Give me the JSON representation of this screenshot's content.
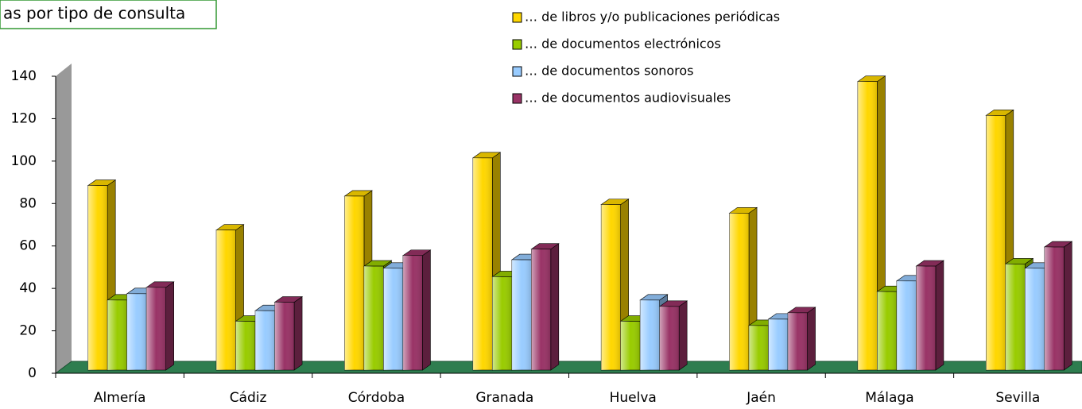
{
  "chart_data": {
    "type": "bar3d",
    "title": "as por tipo de consulta",
    "categories": [
      "Almería",
      "Cádiz",
      "Córdoba",
      "Granada",
      "Huelva",
      "Jaén",
      "Málaga",
      "Sevilla"
    ],
    "series": [
      {
        "name": "… de libros y/o publicaciones periódicas",
        "color": "#ffd700",
        "values": [
          87,
          66,
          82,
          100,
          78,
          74,
          136,
          120
        ]
      },
      {
        "name": "… de documentos electrónicos",
        "color": "#99cc00",
        "values": [
          33,
          23,
          49,
          44,
          23,
          21,
          37,
          50
        ]
      },
      {
        "name": "… de documentos sonoros",
        "color": "#99ccff",
        "values": [
          36,
          28,
          48,
          52,
          33,
          24,
          42,
          48
        ]
      },
      {
        "name": "… de documentos audiovisuales",
        "color": "#993366",
        "values": [
          39,
          32,
          54,
          57,
          30,
          27,
          49,
          58
        ]
      }
    ],
    "ylim": [
      0,
      140
    ],
    "yticks": [
      0,
      20,
      40,
      60,
      80,
      100,
      120,
      140
    ],
    "legend": "top-right"
  }
}
